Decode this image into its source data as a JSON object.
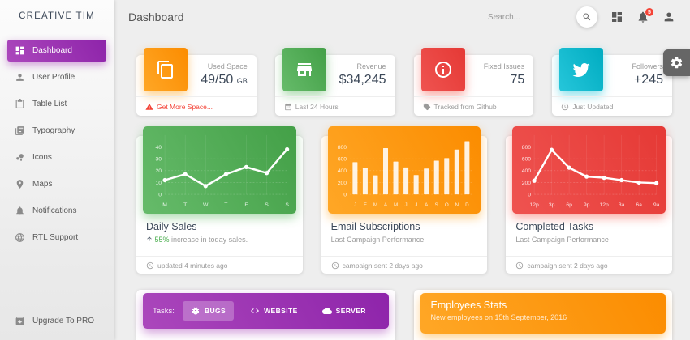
{
  "colors": {
    "purple": "#9c27b0",
    "green": "#4caf50",
    "orange": "#ff9800",
    "red": "#f44336",
    "info": "#00bcd4",
    "background": "#eeeeee"
  },
  "sidebar": {
    "logo": "CREATIVE TIM",
    "items": [
      {
        "label": "Dashboard",
        "icon": "dashboard-icon",
        "active": true
      },
      {
        "label": "User Profile",
        "icon": "person-icon",
        "active": false
      },
      {
        "label": "Table List",
        "icon": "clipboard-icon",
        "active": false
      },
      {
        "label": "Typography",
        "icon": "typography-icon",
        "active": false
      },
      {
        "label": "Icons",
        "icon": "bubbles-icon",
        "active": false
      },
      {
        "label": "Maps",
        "icon": "map-pin-icon",
        "active": false
      },
      {
        "label": "Notifications",
        "icon": "bell-icon",
        "active": false
      },
      {
        "label": "RTL Support",
        "icon": "globe-icon",
        "active": false
      }
    ],
    "upgrade_label": "Upgrade To PRO"
  },
  "header": {
    "title": "Dashboard",
    "search_placeholder": "Search...",
    "notifications_badge": "5"
  },
  "stats_cards": [
    {
      "label": "Used Space",
      "value": "49/50",
      "unit": "GB",
      "footer": "Get More Space...",
      "icon": "copy-icon",
      "theme": "orange"
    },
    {
      "label": "Revenue",
      "value": "$34,245",
      "unit": "",
      "footer": "Last 24 Hours",
      "icon": "store-icon",
      "theme": "green"
    },
    {
      "label": "Fixed Issues",
      "value": "75",
      "unit": "",
      "footer": "Tracked from Github",
      "icon": "info-icon",
      "theme": "red"
    },
    {
      "label": "Followers",
      "value": "+245",
      "unit": "",
      "footer": "Just Updated",
      "icon": "twitter-icon",
      "theme": "info"
    }
  ],
  "chart_cards": [
    {
      "title": "Daily Sales",
      "subtitle_highlight": "55%",
      "subtitle_rest": " increase in today sales.",
      "footer": "updated 4 minutes ago"
    },
    {
      "title": "Email Subscriptions",
      "subtitle": "Last Campaign Performance",
      "footer": "campaign sent 2 days ago"
    },
    {
      "title": "Completed Tasks",
      "subtitle": "Last Campaign Performance",
      "footer": "campaign sent 2 days ago"
    }
  ],
  "tasks_bar": {
    "label": "Tasks:",
    "tabs": [
      {
        "label": "BUGS",
        "icon": "bug-icon",
        "active": true
      },
      {
        "label": "WEBSITE",
        "icon": "code-icon",
        "active": false
      },
      {
        "label": "SERVER",
        "icon": "cloud-icon",
        "active": false
      }
    ]
  },
  "employees_card": {
    "title": "Employees Stats",
    "subtitle": "New employees on 15th September, 2016"
  },
  "chart_data": [
    {
      "type": "line",
      "title": "Daily Sales",
      "categories": [
        "M",
        "T",
        "W",
        "T",
        "F",
        "S",
        "S"
      ],
      "values": [
        12,
        17,
        7,
        17,
        23,
        18,
        38
      ],
      "ylabel": "",
      "xlabel": "",
      "ylim": [
        0,
        50
      ],
      "yticks": [
        0,
        10,
        20,
        30,
        40
      ],
      "grid": true,
      "theme": "green"
    },
    {
      "type": "bar",
      "title": "Email Subscriptions",
      "categories": [
        "J",
        "F",
        "M",
        "A",
        "M",
        "J",
        "J",
        "A",
        "S",
        "O",
        "N",
        "D"
      ],
      "values": [
        542,
        443,
        320,
        780,
        553,
        453,
        326,
        434,
        568,
        610,
        756,
        895
      ],
      "ylabel": "",
      "xlabel": "",
      "ylim": [
        0,
        1000
      ],
      "yticks": [
        0,
        200,
        400,
        600,
        800
      ],
      "grid": true,
      "theme": "orange"
    },
    {
      "type": "line",
      "title": "Completed Tasks",
      "categories": [
        "12p",
        "3p",
        "6p",
        "9p",
        "12p",
        "3a",
        "6a",
        "9a"
      ],
      "values": [
        230,
        750,
        450,
        300,
        280,
        240,
        200,
        190
      ],
      "ylabel": "",
      "xlabel": "",
      "ylim": [
        0,
        1000
      ],
      "yticks": [
        0,
        200,
        400,
        600,
        800
      ],
      "grid": true,
      "theme": "red"
    }
  ]
}
